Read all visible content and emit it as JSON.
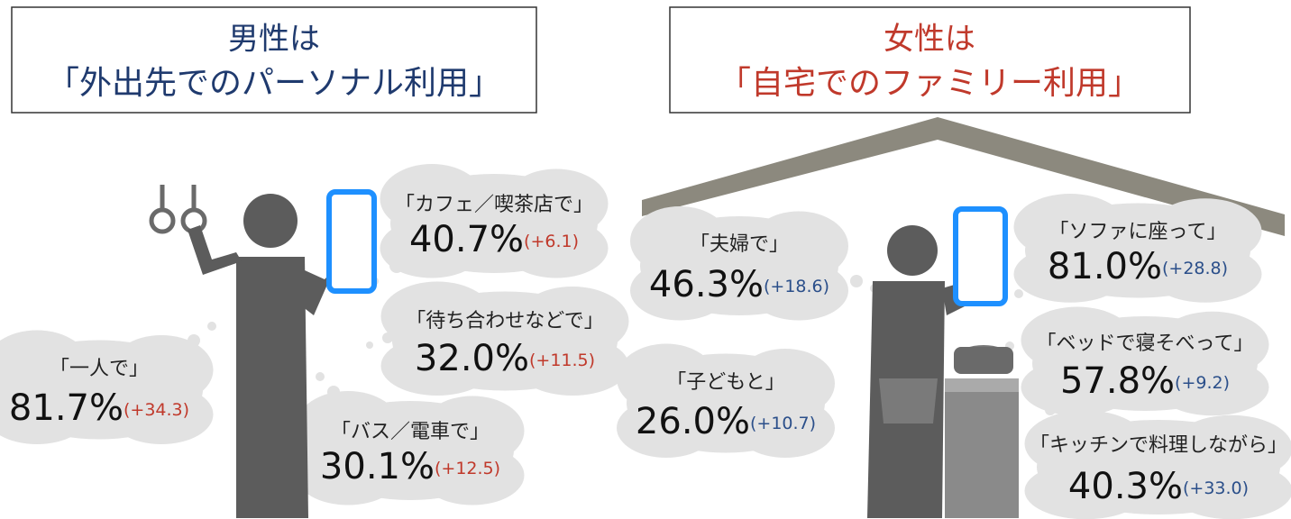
{
  "left": {
    "title": [
      "男性は",
      "「外出先でのパーソナル利用」"
    ],
    "items": [
      {
        "label": "「カフェ／喫茶店で」",
        "value": "40.7%",
        "change": "(+6.1)"
      },
      {
        "label": "「待ち合わせなどで」",
        "value": "32.0%",
        "change": "(+11.5)"
      },
      {
        "label": "「一人で」",
        "value": "81.7%",
        "change": "(+34.3)"
      },
      {
        "label": "「バス／電車で」",
        "value": "30.1%",
        "change": "(+12.5)"
      }
    ]
  },
  "right": {
    "title": [
      "女性は",
      "「自宅でのファミリー利用」"
    ],
    "items": [
      {
        "label": "「夫婦で」",
        "value": "46.3%",
        "change": "(+18.6)"
      },
      {
        "label": "「子どもと」",
        "value": "26.0%",
        "change": "(+10.7)"
      },
      {
        "label": "「ソファに座って」",
        "value": "81.0%",
        "change": "(+28.8)"
      },
      {
        "label": "「ベッドで寝そべって」",
        "value": "57.8%",
        "change": "(+9.2)"
      },
      {
        "label": "「キッチンで料理しながら」",
        "value": "40.3%",
        "change": "(+33.0)"
      }
    ]
  }
}
